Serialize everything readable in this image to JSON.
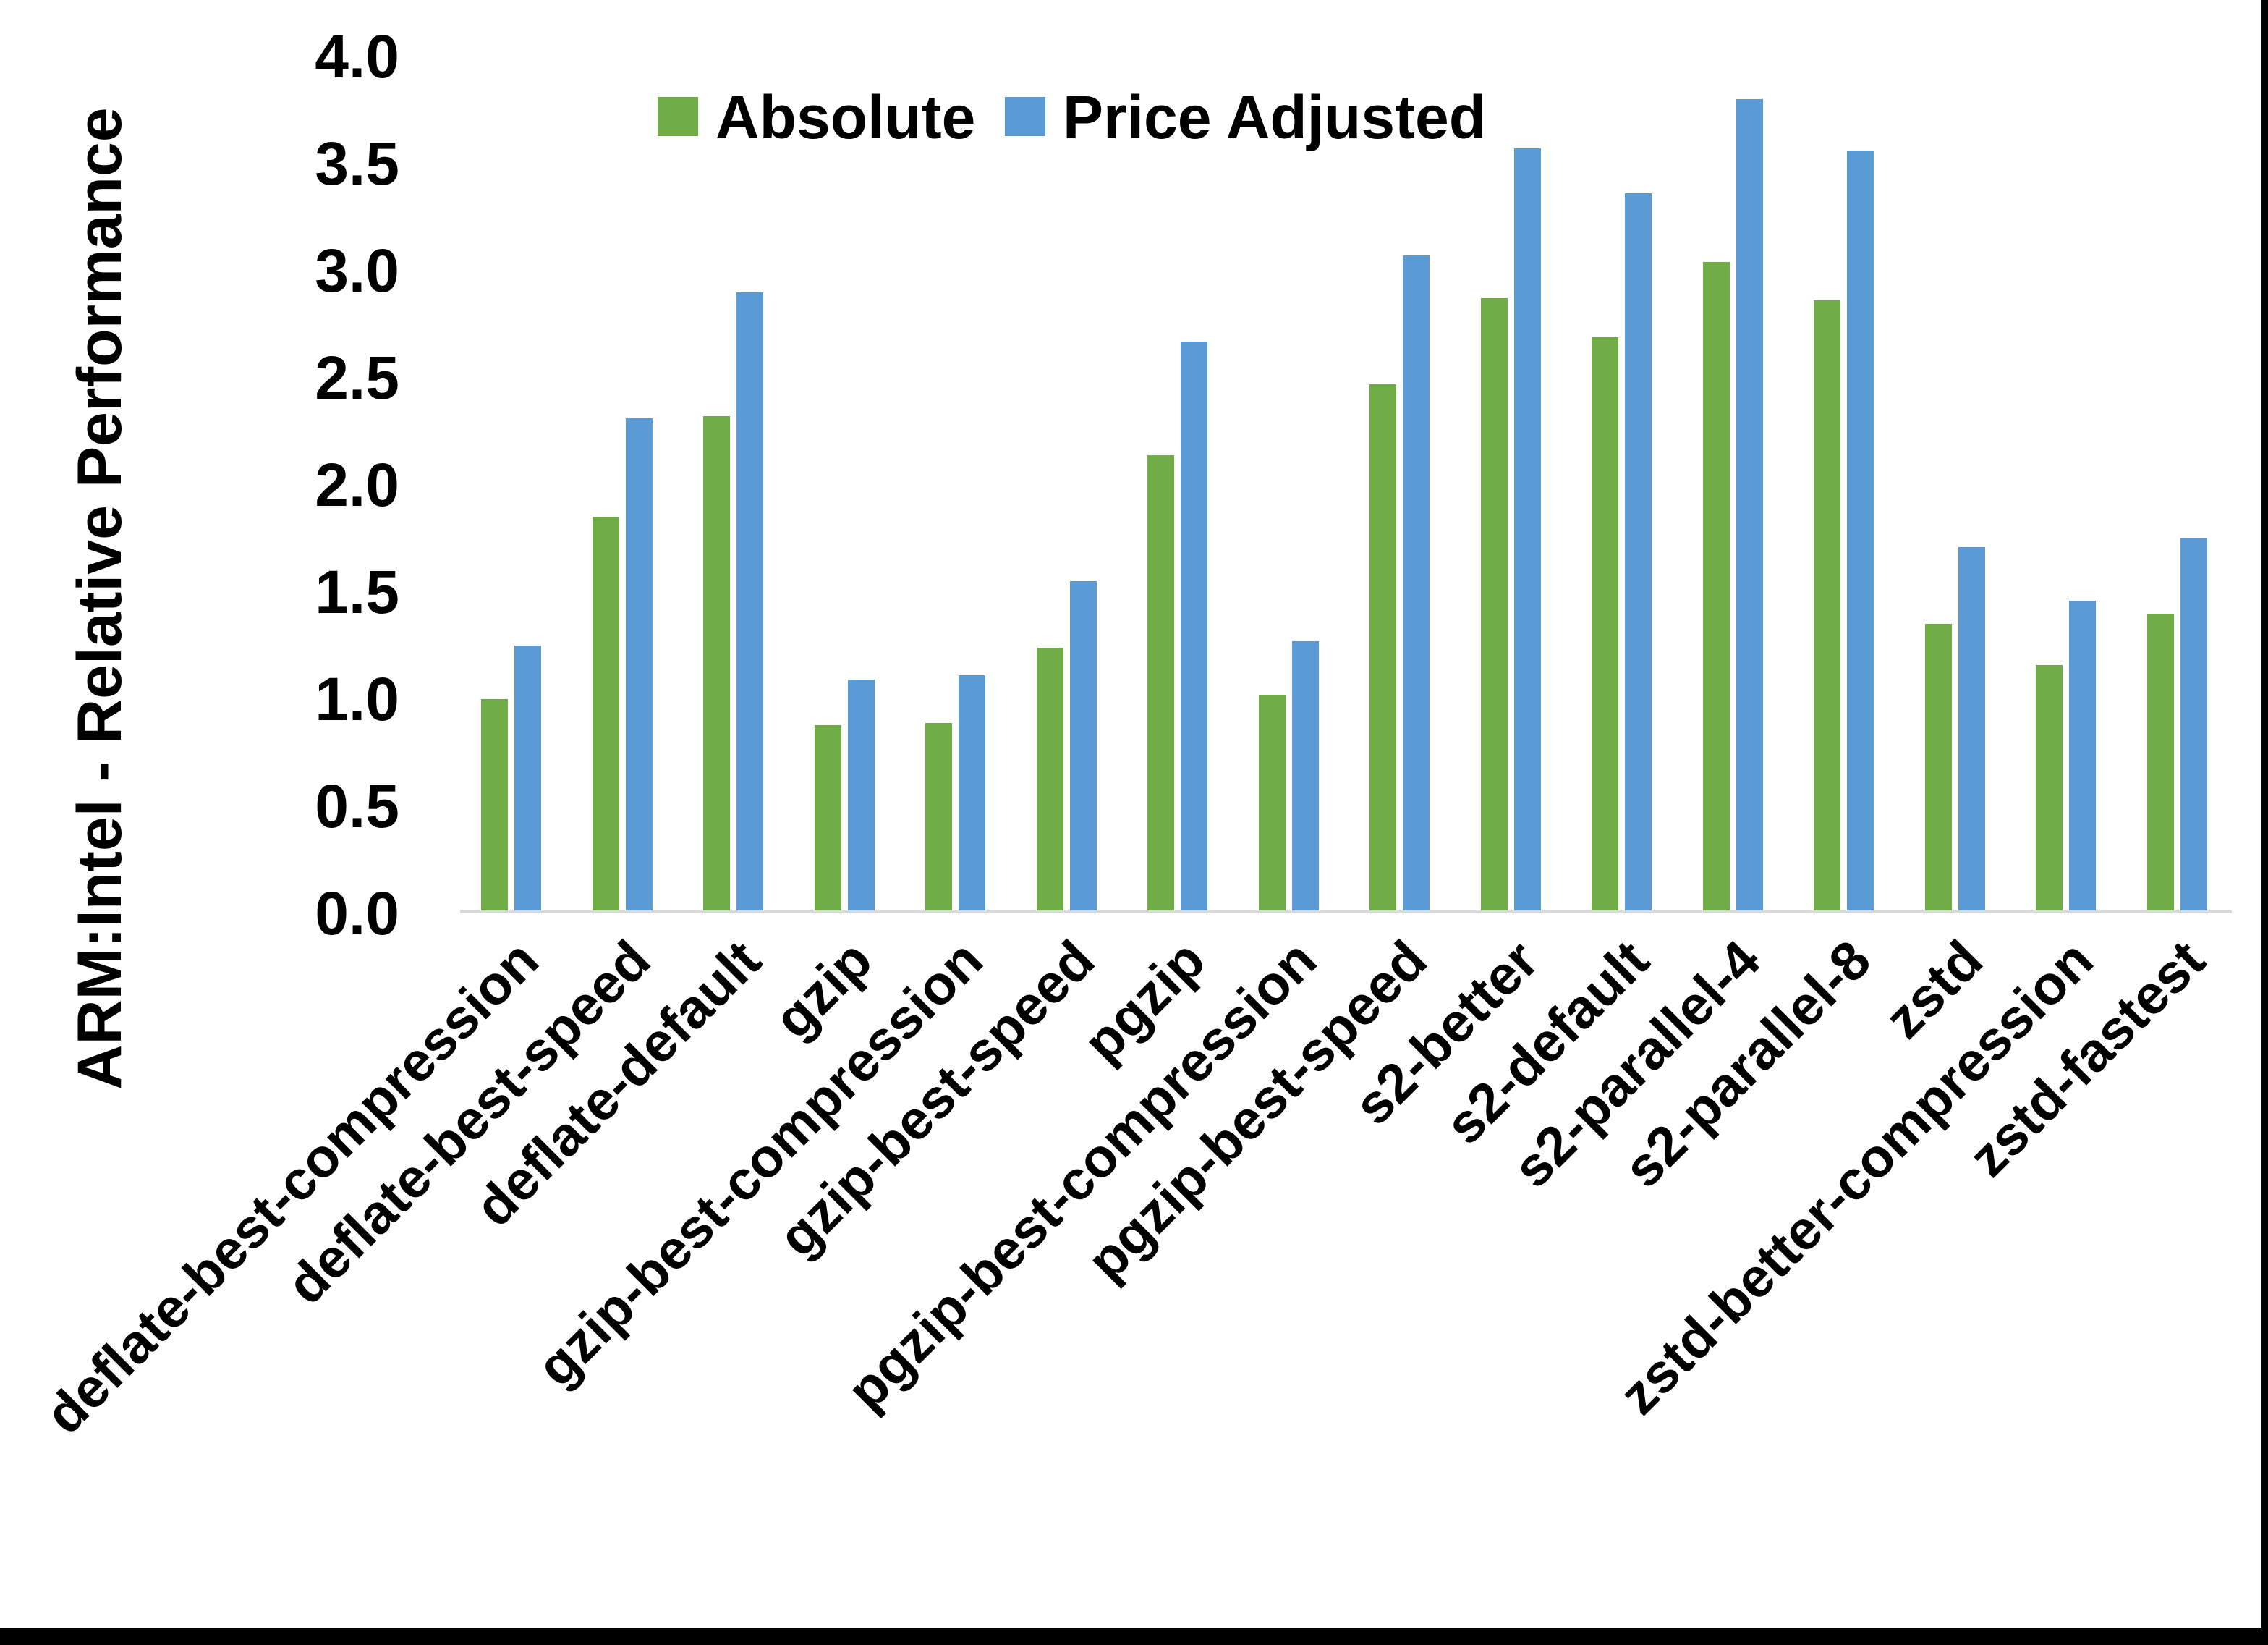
{
  "chart_data": {
    "type": "bar",
    "title": "",
    "ylabel": "ARM:Intel - Relative Performance",
    "xlabel": "",
    "ylim": [
      0.0,
      4.0
    ],
    "ytick_labels": [
      "0.0",
      "0.5",
      "1.0",
      "1.5",
      "2.0",
      "2.5",
      "3.0",
      "3.5",
      "4.0"
    ],
    "grid": false,
    "legend_position": "top-center",
    "axis_line_color": "#d9d9d9",
    "categories": [
      "deflate-best-compression",
      "deflate-best-speed",
      "deflate-default",
      "gzip",
      "gzip-best-compression",
      "gzip-best-speed",
      "pgzip",
      "pgzip-best-compression",
      "pgzip-best-speed",
      "s2-better",
      "s2-default",
      "s2-parallel-4",
      "s2-parallel-8",
      "zstd",
      "zstd-better-compression",
      "zstd-fastest"
    ],
    "series": [
      {
        "name": "Absolute",
        "color": "#70AD47",
        "values": [
          1.0,
          1.85,
          2.32,
          0.88,
          0.89,
          1.24,
          2.14,
          1.02,
          2.47,
          2.87,
          2.69,
          3.04,
          2.86,
          1.35,
          1.16,
          1.4
        ]
      },
      {
        "name": "Price Adjusted",
        "color": "#5B9BD5",
        "values": [
          1.25,
          2.31,
          2.9,
          1.09,
          1.11,
          1.55,
          2.67,
          1.27,
          3.07,
          3.57,
          3.36,
          3.8,
          3.56,
          1.71,
          1.46,
          1.75
        ]
      }
    ]
  }
}
